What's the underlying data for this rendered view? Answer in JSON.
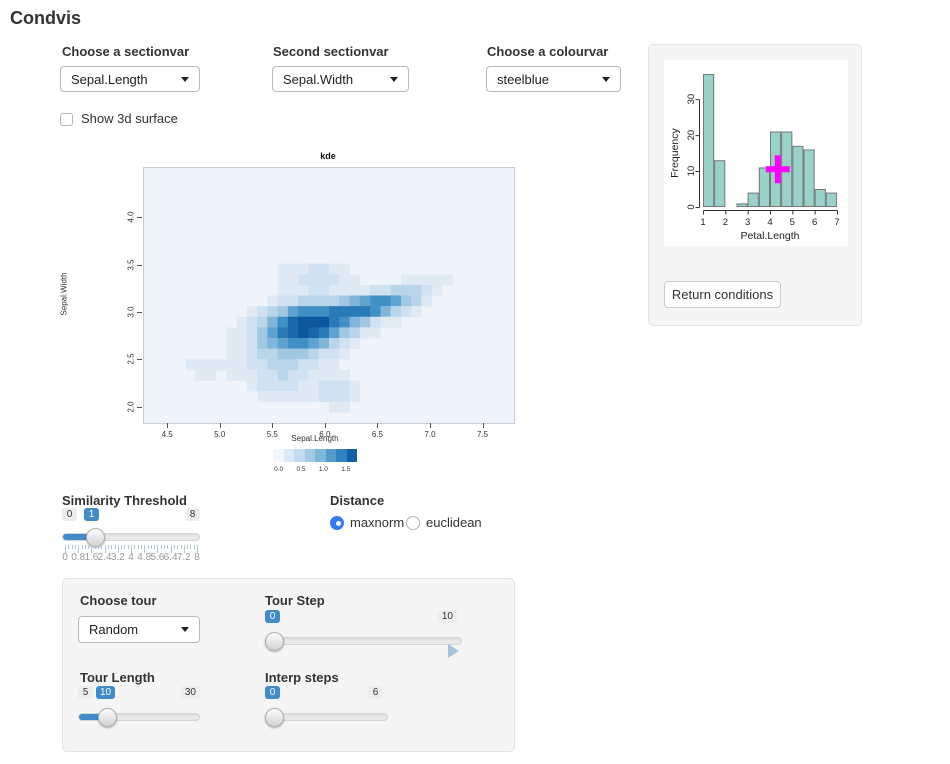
{
  "app": {
    "title": "Condvis"
  },
  "selectors": {
    "sectionvar": {
      "label": "Choose a sectionvar",
      "value": "Sepal.Length"
    },
    "sectionvar2": {
      "label": "Second sectionvar",
      "value": "Sepal.Width"
    },
    "colourvar": {
      "label": "Choose a colourvar",
      "value": "steelblue"
    }
  },
  "surface_checkbox": {
    "label": "Show 3d surface",
    "checked": false
  },
  "similarity": {
    "label": "Similarity Threshold",
    "min": "0",
    "value": "1",
    "max": "8",
    "grid_labels": [
      "0",
      "0.8",
      "1.6",
      "2.4",
      "3.2",
      "4",
      "4.8",
      "5.6",
      "6.4",
      "7.2",
      "8"
    ]
  },
  "distance": {
    "label": "Distance",
    "options": [
      {
        "label": "maxnorm",
        "selected": true
      },
      {
        "label": "euclidean",
        "selected": false
      }
    ]
  },
  "tour_panel": {
    "tour": {
      "label": "Choose tour",
      "value": "Random"
    },
    "tour_step": {
      "label": "Tour Step",
      "min": "0",
      "value": "0",
      "max": "10"
    },
    "tour_length": {
      "label": "Tour Length",
      "min": "5",
      "value": "10",
      "max": "30"
    },
    "interp_steps": {
      "label": "Interp steps",
      "min": "0",
      "value": "0",
      "max": "6"
    }
  },
  "condition_selector": {
    "button_label": "Return conditions"
  },
  "chart_data": [
    {
      "type": "heatmap",
      "title": "kde",
      "xlabel": "Sepal.Length",
      "ylabel": "Sepal.Width",
      "xlim": [
        4.27,
        7.79
      ],
      "ylim": [
        1.84,
        4.53
      ],
      "xticks": [
        4.5,
        5.0,
        5.5,
        6.0,
        6.5,
        7.0,
        7.5
      ],
      "yticks": [
        2.0,
        2.5,
        3.0,
        3.5,
        4.0
      ],
      "grid": [
        36,
        24
      ],
      "levels_step": 0.2,
      "level_colors": [
        "#eff4fb",
        "#e0eaf5",
        "#d0e1f2",
        "#b9d5ea",
        "#a0c8e2",
        "#81b5d9",
        "#61a3d0",
        "#4190c5",
        "#2a7ab8",
        "#1a67ab",
        "#0e56a0",
        "#0a3d7a"
      ],
      "density_components": [
        {
          "x": 5.78,
          "y": 2.87,
          "amp": 1.5,
          "sx": 0.26,
          "sy": 0.16,
          "rho": 0.1
        },
        {
          "x": 6.48,
          "y": 3.08,
          "amp": 1.25,
          "sx": 0.28,
          "sy": 0.11,
          "rho": 0.55
        },
        {
          "x": 5.62,
          "y": 2.62,
          "amp": 0.6,
          "sx": 0.38,
          "sy": 0.27,
          "rho": 0.2
        },
        {
          "x": 6.15,
          "y": 2.95,
          "amp": 0.55,
          "sx": 0.35,
          "sy": 0.18,
          "rho": 0.4
        },
        {
          "x": 6.1,
          "y": 2.17,
          "amp": 0.55,
          "sx": 0.17,
          "sy": 0.12,
          "rho": 0.0
        },
        {
          "x": 4.78,
          "y": 2.42,
          "amp": 0.22,
          "sx": 0.16,
          "sy": 0.11,
          "rho": 0.0
        },
        {
          "x": 5.9,
          "y": 3.4,
          "amp": 0.48,
          "sx": 0.28,
          "sy": 0.13,
          "rho": 0.0
        },
        {
          "x": 6.95,
          "y": 3.32,
          "amp": 0.3,
          "sx": 0.22,
          "sy": 0.12,
          "rho": 0.3
        },
        {
          "x": 5.55,
          "y": 2.25,
          "amp": 0.3,
          "sx": 0.18,
          "sy": 0.15,
          "rho": 0.0
        }
      ],
      "colorbar": {
        "ticks": [
          "0.0",
          "0.5",
          "1.0",
          "1.5"
        ],
        "colors": [
          "#f2f7fd",
          "#dde9f6",
          "#c4daef",
          "#a3cbe4",
          "#7db7da",
          "#549bcc",
          "#3182bd",
          "#155fa8"
        ]
      }
    },
    {
      "type": "bar",
      "variant": "histogram",
      "title": "",
      "xlabel": "Petal.Length",
      "ylabel": "Frequency",
      "bin_start": 1,
      "bin_width": 0.5,
      "counts": [
        37,
        13,
        0,
        1,
        4,
        11,
        21,
        21,
        17,
        16,
        5,
        4
      ],
      "xticks": [
        1,
        2,
        3,
        4,
        5,
        6,
        7
      ],
      "yticks": [
        0,
        10,
        20,
        30
      ],
      "ylim": [
        0,
        37
      ],
      "bar_color": "#99d2c9",
      "bar_border": "#787878",
      "marker": {
        "type": "cross",
        "x": 4.35,
        "y": 10.5,
        "color": "#ff00ff"
      }
    }
  ]
}
